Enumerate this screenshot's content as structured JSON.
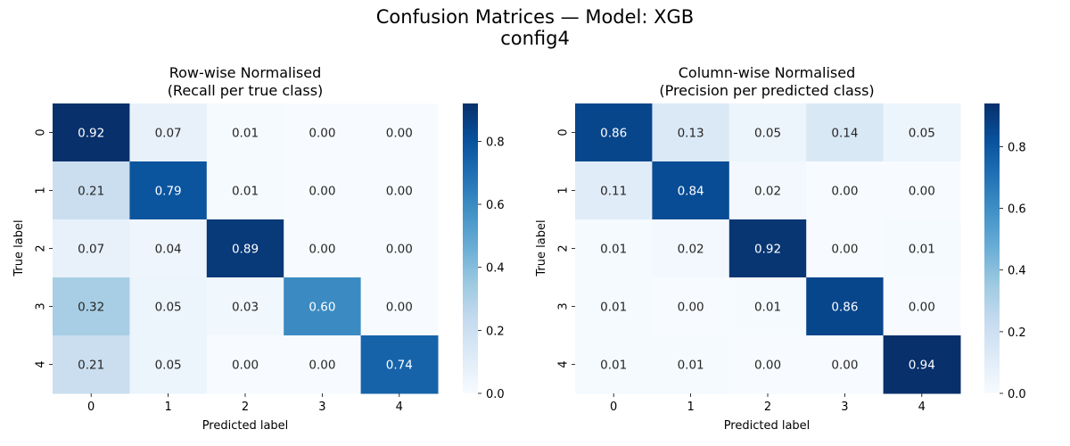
{
  "figure": {
    "suptitle_line1": "Confusion Matrices — Model: XGB",
    "suptitle_line2": "config4"
  },
  "chart_data": [
    {
      "type": "heatmap",
      "title_line1": "Row-wise Normalised",
      "title_line2": "(Recall per true class)",
      "xlabel": "Predicted label",
      "ylabel": "True label",
      "x_categories": [
        "0",
        "1",
        "2",
        "3",
        "4"
      ],
      "y_categories": [
        "0",
        "1",
        "2",
        "3",
        "4"
      ],
      "values": [
        [
          0.92,
          0.07,
          0.01,
          0.0,
          0.0
        ],
        [
          0.21,
          0.79,
          0.01,
          0.0,
          0.0
        ],
        [
          0.07,
          0.04,
          0.89,
          0.0,
          0.0
        ],
        [
          0.32,
          0.05,
          0.03,
          0.6,
          0.0
        ],
        [
          0.21,
          0.05,
          0.0,
          0.0,
          0.74
        ]
      ],
      "colormap": "Blues",
      "colorbar": {
        "vmin": 0.0,
        "vmax": 0.92,
        "ticks": [
          "0.0",
          "0.2",
          "0.4",
          "0.6",
          "0.8"
        ]
      }
    },
    {
      "type": "heatmap",
      "title_line1": "Column-wise Normalised",
      "title_line2": "(Precision per predicted class)",
      "xlabel": "Predicted label",
      "ylabel": "True label",
      "x_categories": [
        "0",
        "1",
        "2",
        "3",
        "4"
      ],
      "y_categories": [
        "0",
        "1",
        "2",
        "3",
        "4"
      ],
      "values": [
        [
          0.86,
          0.13,
          0.05,
          0.14,
          0.05
        ],
        [
          0.11,
          0.84,
          0.02,
          0.0,
          0.0
        ],
        [
          0.01,
          0.02,
          0.92,
          0.0,
          0.01
        ],
        [
          0.01,
          0.0,
          0.01,
          0.86,
          0.0
        ],
        [
          0.01,
          0.01,
          0.0,
          0.0,
          0.94
        ]
      ],
      "colormap": "Blues",
      "colorbar": {
        "vmin": 0.0,
        "vmax": 0.94,
        "ticks": [
          "0.0",
          "0.2",
          "0.4",
          "0.6",
          "0.8"
        ]
      }
    }
  ]
}
